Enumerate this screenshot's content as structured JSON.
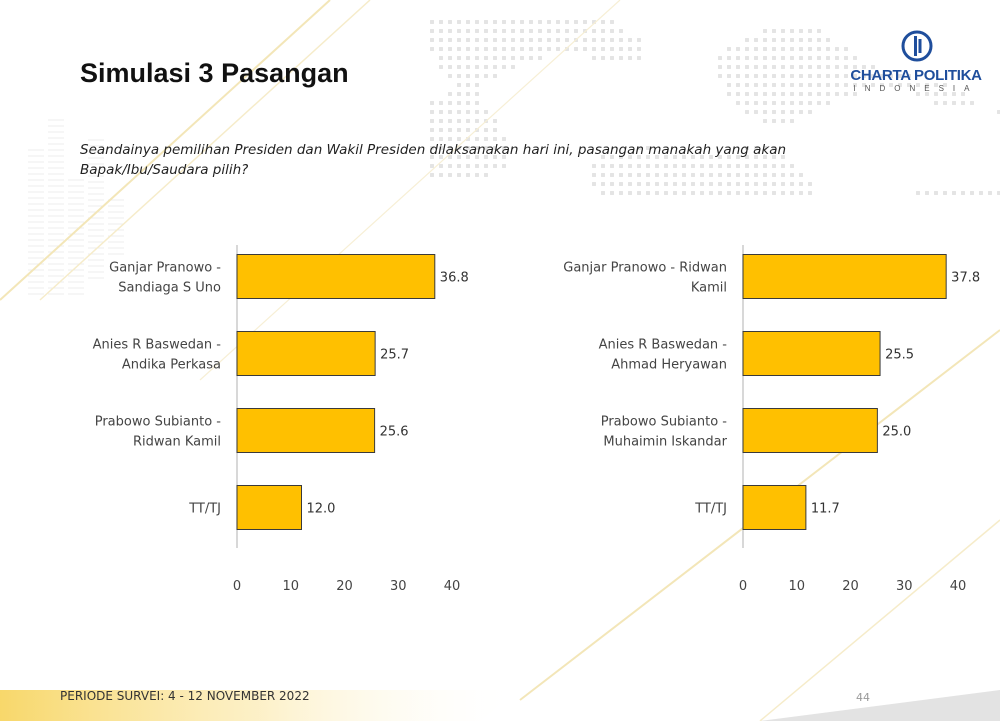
{
  "header": {
    "title": "Simulasi 3 Pasangan",
    "question": "Seandainya pemilihan Presiden dan Wakil Presiden dilaksanakan hari ini, pasangan manakah yang akan Bapak/Ibu/Saudara pilih?"
  },
  "logo": {
    "name": "CHARTA POLITIKA",
    "sub": "INDONESIA",
    "icon": "charta-politika-logo-icon"
  },
  "footer": {
    "period": "PERIODE SURVEI: 4 - 12 NOVEMBER 2022",
    "page": "44"
  },
  "colors": {
    "bar": "#FFC000",
    "bar_stroke": "#3a3a3a",
    "axis": "#bfbfbf",
    "accent_gold": "#E8B400"
  },
  "chart_data": [
    {
      "type": "bar",
      "orientation": "horizontal",
      "categories": [
        [
          "Ganjar Pranowo -",
          "Sandiaga S Uno"
        ],
        [
          "Anies R Baswedan -",
          "Andika Perkasa"
        ],
        [
          "Prabowo Subianto -",
          "Ridwan Kamil"
        ],
        [
          "TT/TJ"
        ]
      ],
      "values": [
        36.8,
        25.7,
        25.6,
        12.0
      ],
      "value_labels": [
        "36.8",
        "25.7",
        "25.6",
        "12.0"
      ],
      "xlim": [
        0,
        40
      ],
      "xticks": [
        "0",
        "10",
        "20",
        "30",
        "40"
      ],
      "grid": false
    },
    {
      "type": "bar",
      "orientation": "horizontal",
      "categories": [
        [
          "Ganjar Pranowo - Ridwan",
          "Kamil"
        ],
        [
          "Anies R Baswedan -",
          "Ahmad Heryawan"
        ],
        [
          "Prabowo Subianto -",
          "Muhaimin Iskandar"
        ],
        [
          "TT/TJ"
        ]
      ],
      "values": [
        37.8,
        25.5,
        25.0,
        11.7
      ],
      "value_labels": [
        "37.8",
        "25.5",
        "25.0",
        "11.7"
      ],
      "xlim": [
        0,
        40
      ],
      "xticks": [
        "0",
        "10",
        "20",
        "30",
        "40"
      ],
      "grid": false
    }
  ]
}
